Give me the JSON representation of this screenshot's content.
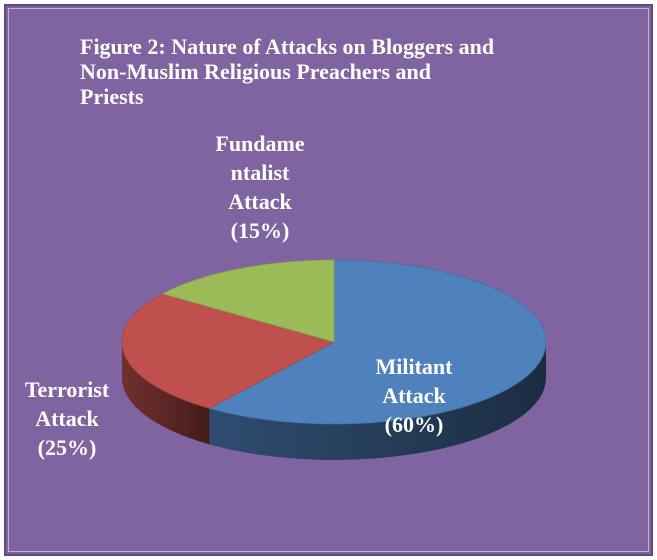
{
  "title_lines": [
    "Figure 2: Nature of Attacks on Bloggers and",
    "Non-Muslim Religious Preachers and",
    "Priests"
  ],
  "colors": {
    "background": "#8064a2",
    "militant": "#4f81bd",
    "terrorist": "#c0504d",
    "fundamentalist": "#9bbb59"
  },
  "chart_data": {
    "type": "pie",
    "title": "Figure 2: Nature of Attacks on Bloggers and Non-Muslim Religious Preachers and Priests",
    "style": "3d",
    "slices": [
      {
        "name": "Militant Attack",
        "value": 60,
        "label_lines": [
          "Militant",
          "Attack",
          "(60%)"
        ]
      },
      {
        "name": "Terrorist Attack",
        "value": 25,
        "label_lines": [
          "Terrorist",
          "Attack",
          "(25%)"
        ]
      },
      {
        "name": "Fundamentalist Attack",
        "value": 15,
        "label_lines": [
          "Fundame",
          "ntalist",
          "Attack",
          "(15%)"
        ]
      }
    ]
  }
}
